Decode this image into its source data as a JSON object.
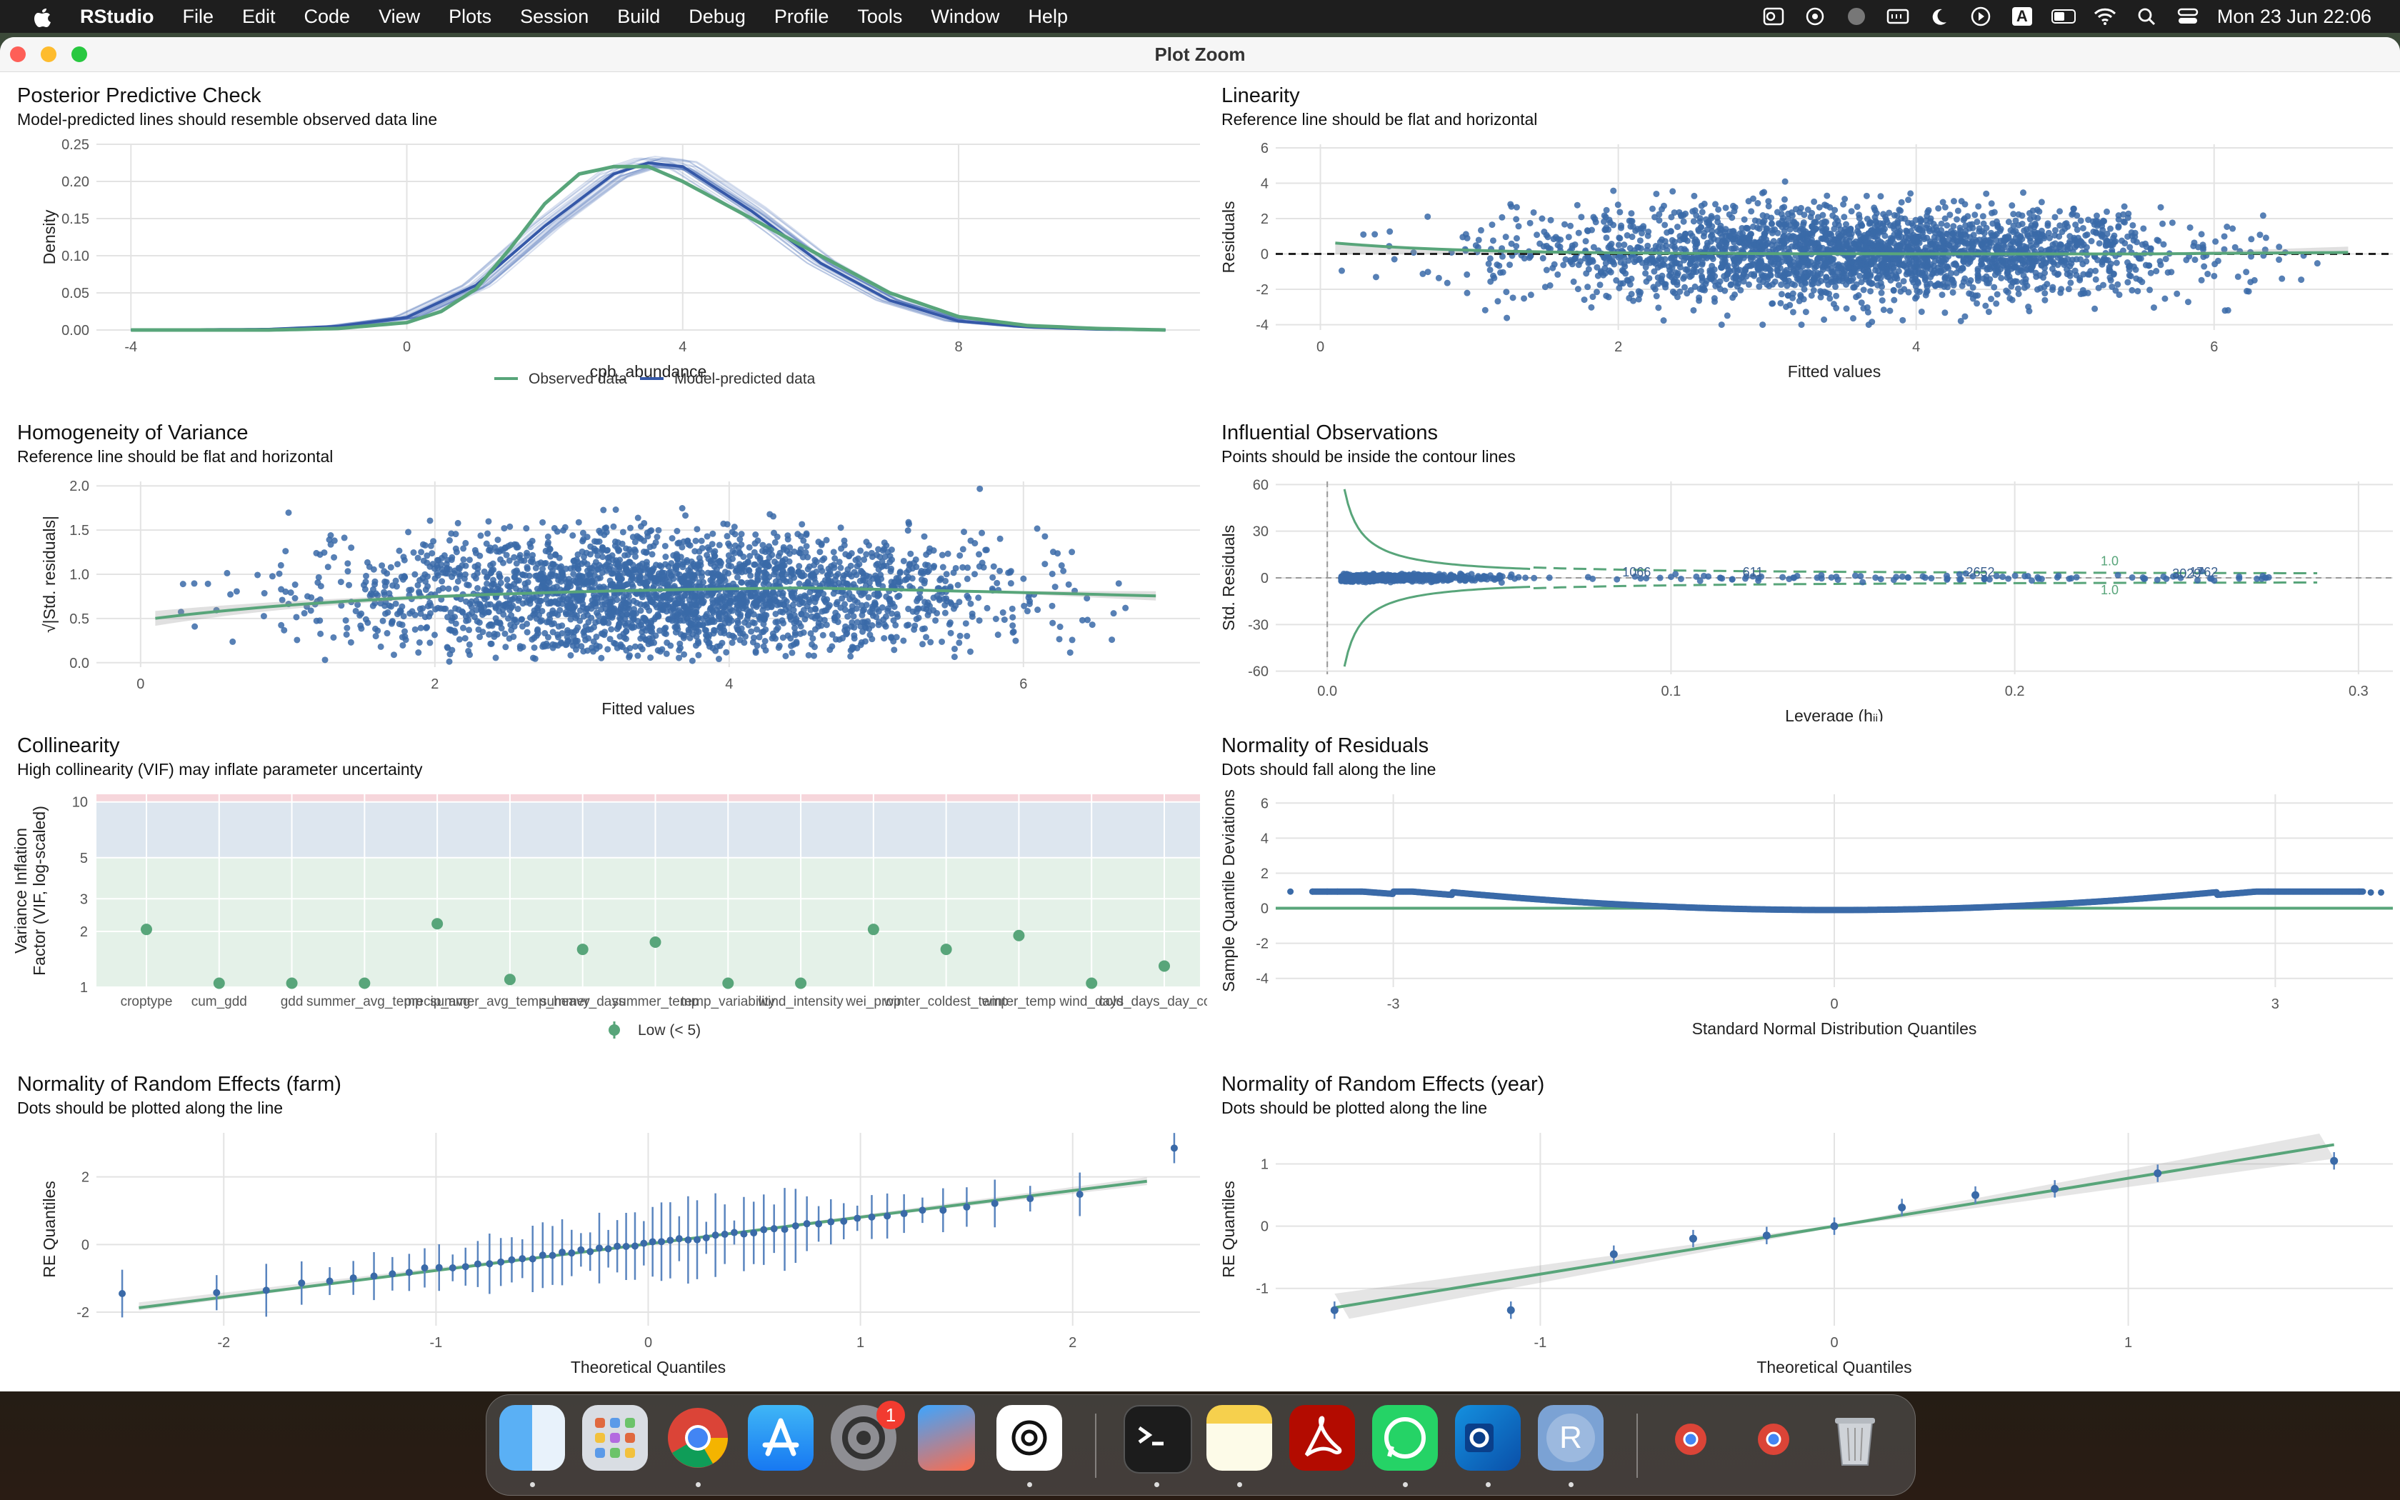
{
  "menubar": {
    "app": "RStudio",
    "items": [
      "File",
      "Edit",
      "Code",
      "View",
      "Plots",
      "Session",
      "Build",
      "Debug",
      "Profile",
      "Tools",
      "Window",
      "Help"
    ],
    "clock": "Mon 23 Jun  22:06",
    "input_source": "A"
  },
  "window": {
    "title": "Plot Zoom"
  },
  "panels": {
    "ppc": {
      "title": "Posterior Predictive Check",
      "subtitle": "Model-predicted lines should resemble observed data line",
      "xlabel": "cpb_abundance",
      "ylabel": "Density",
      "xticks": [
        "-4",
        "0",
        "4",
        "8"
      ],
      "yticks": [
        "0.00",
        "0.05",
        "0.10",
        "0.15",
        "0.20",
        "0.25"
      ],
      "legend": [
        "Observed data",
        "Model-predicted data"
      ]
    },
    "lin": {
      "title": "Linearity",
      "subtitle": "Reference line should be flat and horizontal",
      "xlabel": "Fitted values",
      "ylabel": "Residuals",
      "xticks": [
        "0",
        "2",
        "4",
        "6"
      ],
      "yticks": [
        "-4",
        "-2",
        "0",
        "2",
        "4",
        "6"
      ]
    },
    "hov": {
      "title": "Homogeneity of Variance",
      "subtitle": "Reference line should be flat and horizontal",
      "xlabel": "Fitted values",
      "ylabel": "√|Std. residuals|",
      "xticks": [
        "0",
        "2",
        "4",
        "6"
      ],
      "yticks": [
        "0.0",
        "0.5",
        "1.0",
        "1.5",
        "2.0"
      ]
    },
    "inf": {
      "title": "Influential Observations",
      "subtitle": "Points should be inside the contour lines",
      "xlabel": "Leverage (hᵢᵢ)",
      "ylabel": "Std. Residuals",
      "xticks": [
        "0.0",
        "0.1",
        "0.2",
        "0.3"
      ],
      "yticks": [
        "-60",
        "-30",
        "0",
        "30",
        "60"
      ],
      "contour_labels": [
        "1.0",
        "1.0"
      ],
      "point_labels": [
        "1066",
        "611",
        "2652",
        "1762",
        "3029"
      ]
    },
    "col": {
      "title": "Collinearity",
      "subtitle": "High collinearity (VIF) may inflate parameter uncertainty",
      "ylabel_1": "Variance Inflation",
      "ylabel_2": "Factor (VIF, log-scaled)",
      "yticks": [
        "1",
        "2",
        "3",
        "5",
        "10"
      ],
      "legend": "Low (< 5)"
    },
    "nres": {
      "title": "Normality of Residuals",
      "subtitle": "Dots should fall along the line",
      "xlabel": "Standard Normal Distribution Quantiles",
      "ylabel": "Sample Quantile Deviations",
      "xticks": [
        "-3",
        "0",
        "3"
      ],
      "yticks": [
        "-4",
        "-2",
        "0",
        "2",
        "4",
        "6"
      ]
    },
    "ref_farm": {
      "title": "Normality of Random Effects (farm)",
      "subtitle": "Dots should be plotted along the line",
      "xlabel": "Theoretical Quantiles",
      "ylabel": "RE Quantiles",
      "xticks": [
        "-2",
        "-1",
        "0",
        "1",
        "2"
      ],
      "yticks": [
        "-2",
        "0",
        "2"
      ]
    },
    "ref_year": {
      "title": "Normality of Random Effects (year)",
      "subtitle": "Dots should be plotted along the line",
      "xlabel": "Theoretical Quantiles",
      "ylabel": "RE Quantiles",
      "xticks": [
        "-1",
        "0",
        "1"
      ],
      "yticks": [
        "-1",
        "0",
        "1"
      ]
    }
  },
  "chart_data": [
    {
      "type": "line",
      "title": "Posterior Predictive Check",
      "xlabel": "cpb_abundance",
      "ylabel": "Density",
      "xlim": [
        -4.5,
        11.5
      ],
      "ylim": [
        0,
        0.25
      ],
      "series": [
        {
          "name": "Observed data",
          "x": [
            -4,
            -2,
            -1,
            0,
            0.5,
            1,
            1.5,
            2,
            2.5,
            3,
            3.5,
            4,
            5,
            6,
            7,
            8,
            9,
            10,
            11
          ],
          "y": [
            0,
            0,
            0.002,
            0.01,
            0.025,
            0.055,
            0.11,
            0.17,
            0.21,
            0.22,
            0.22,
            0.2,
            0.15,
            0.1,
            0.05,
            0.018,
            0.006,
            0.002,
            0
          ]
        },
        {
          "name": "Model-predicted data",
          "x": [
            -4,
            -2,
            -1,
            0,
            1,
            2,
            3,
            3.5,
            4,
            5,
            6,
            7,
            8,
            9,
            10,
            11
          ],
          "y": [
            0,
            0.001,
            0.005,
            0.017,
            0.06,
            0.14,
            0.21,
            0.225,
            0.22,
            0.16,
            0.09,
            0.04,
            0.012,
            0.004,
            0.001,
            0
          ]
        }
      ]
    },
    {
      "type": "scatter",
      "title": "Linearity",
      "xlabel": "Fitted values",
      "ylabel": "Residuals",
      "xlim": [
        -0.3,
        7.2
      ],
      "ylim": [
        -4.3,
        6.2
      ],
      "reference_line": 0
    },
    {
      "type": "scatter",
      "title": "Homogeneity of Variance",
      "xlabel": "Fitted values",
      "ylabel": "√|Std. residuals|",
      "xlim": [
        -0.3,
        7.2
      ],
      "ylim": [
        -0.05,
        2.05
      ]
    },
    {
      "type": "scatter",
      "title": "Influential Observations",
      "xlabel": "Leverage (hᵢᵢ)",
      "ylabel": "Std. Residuals",
      "xlim": [
        -0.015,
        0.31
      ],
      "ylim": [
        -62,
        62
      ],
      "labeled_points": [
        {
          "label": "1066",
          "x": 0.085,
          "y": 0
        },
        {
          "label": "611",
          "x": 0.12,
          "y": 0
        },
        {
          "label": "2652",
          "x": 0.185,
          "y": 0
        },
        {
          "label": "1762",
          "x": 0.25,
          "y": 0
        },
        {
          "label": "3029",
          "x": 0.245,
          "y": -1
        }
      ]
    },
    {
      "type": "scatter",
      "title": "Collinearity",
      "ylabel": "Variance Inflation Factor (VIF, log-scaled)",
      "y_scale": "log",
      "ylim": [
        1,
        11
      ],
      "categories": [
        "croptype",
        "cum_gdd",
        "gdd",
        "summer_avg_temp",
        "precip_avg",
        "summer_avg_temp_heavy",
        "summer_days",
        "summer_temp",
        "temp_variability",
        "wind_intensity",
        "wei_prop",
        "winter_coldest_temp",
        "winter_temp",
        "wind_days",
        "cold_days_day_count"
      ],
      "values": [
        2.05,
        1.05,
        1.05,
        1.05,
        2.2,
        1.1,
        1.6,
        1.75,
        1.05,
        1.05,
        2.05,
        1.6,
        1.9,
        1.05,
        1.3
      ],
      "legend": "Low (< 5)"
    },
    {
      "type": "scatter",
      "title": "Normality of Residuals",
      "xlabel": "Standard Normal Distribution Quantiles",
      "ylabel": "Sample Quantile Deviations",
      "xlim": [
        -3.8,
        3.8
      ],
      "ylim": [
        -4.5,
        6.5
      ]
    },
    {
      "type": "scatter",
      "title": "Normality of Random Effects (farm)",
      "xlabel": "Theoretical Quantiles",
      "ylabel": "RE Quantiles",
      "xlim": [
        -2.6,
        2.6
      ],
      "ylim": [
        -2.4,
        3.3
      ]
    },
    {
      "type": "scatter",
      "title": "Normality of Random Effects (year)",
      "xlabel": "Theoretical Quantiles",
      "ylabel": "RE Quantiles",
      "xlim": [
        -1.9,
        1.9
      ],
      "ylim": [
        -1.6,
        1.5
      ],
      "x": [
        -1.7,
        -1.1,
        -0.75,
        -0.48,
        -0.23,
        0,
        0.23,
        0.48,
        0.75,
        1.1,
        1.7
      ],
      "y": [
        -1.35,
        -1.35,
        -0.45,
        -0.2,
        -0.15,
        0,
        0.3,
        0.5,
        0.6,
        0.85,
        1.05
      ]
    }
  ],
  "dock": {
    "icons": [
      "finder-icon",
      "launchpad-icon",
      "chrome-icon",
      "app-store-icon",
      "system-settings-icon",
      "iphone-mirroring-icon",
      "chatgpt-icon",
      "terminal-icon",
      "notes-icon",
      "acrobat-icon",
      "whatsapp-icon",
      "outlook-icon",
      "rstudio-icon",
      "chrome-minimized-icon",
      "chrome-minimized-icon-2",
      "trash-icon"
    ],
    "badge": "1"
  }
}
